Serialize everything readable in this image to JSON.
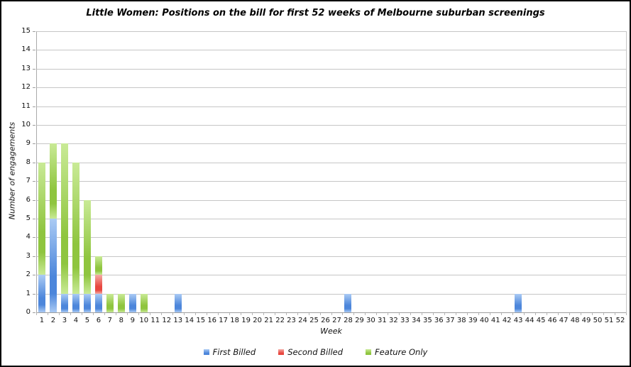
{
  "chart_data": {
    "type": "bar",
    "stacked": true,
    "title": "Little Women: Positions on the bill for first 52 weeks of Melbourne suburban screenings",
    "xlabel": "Week",
    "ylabel": "Number of engagements",
    "ylim": [
      0,
      15
    ],
    "y_ticks": [
      0,
      1,
      2,
      3,
      4,
      5,
      6,
      7,
      8,
      9,
      10,
      11,
      12,
      13,
      14,
      15
    ],
    "grid": true,
    "legend_position": "bottom",
    "categories": [
      1,
      2,
      3,
      4,
      5,
      6,
      7,
      8,
      9,
      10,
      11,
      12,
      13,
      14,
      15,
      16,
      17,
      18,
      19,
      20,
      21,
      22,
      23,
      24,
      25,
      26,
      27,
      28,
      29,
      30,
      31,
      32,
      33,
      34,
      35,
      36,
      37,
      38,
      39,
      40,
      41,
      42,
      43,
      44,
      45,
      46,
      47,
      48,
      49,
      50,
      51,
      52
    ],
    "series": [
      {
        "name": "First Billed",
        "color_main": "#4c86db",
        "color_light": "#abcbf4",
        "values": [
          2,
          5,
          1,
          1,
          1,
          1,
          0,
          0,
          1,
          0,
          0,
          0,
          1,
          0,
          0,
          0,
          0,
          0,
          0,
          0,
          0,
          0,
          0,
          0,
          0,
          0,
          0,
          1,
          0,
          0,
          0,
          0,
          0,
          0,
          0,
          0,
          0,
          0,
          0,
          0,
          0,
          0,
          1,
          0,
          0,
          0,
          0,
          0,
          0,
          0,
          0,
          0
        ]
      },
      {
        "name": "Second Billed",
        "color_main": "#e8473f",
        "color_light": "#f4aba5",
        "values": [
          0,
          0,
          0,
          0,
          0,
          1,
          0,
          0,
          0,
          0,
          0,
          0,
          0,
          0,
          0,
          0,
          0,
          0,
          0,
          0,
          0,
          0,
          0,
          0,
          0,
          0,
          0,
          0,
          0,
          0,
          0,
          0,
          0,
          0,
          0,
          0,
          0,
          0,
          0,
          0,
          0,
          0,
          0,
          0,
          0,
          0,
          0,
          0,
          0,
          0,
          0,
          0
        ]
      },
      {
        "name": "Feature Only",
        "color_main": "#8fc53f",
        "color_light": "#c9ea96",
        "values": [
          6,
          4,
          8,
          7,
          5,
          1,
          1,
          1,
          0,
          1,
          0,
          0,
          0,
          0,
          0,
          0,
          0,
          0,
          0,
          0,
          0,
          0,
          0,
          0,
          0,
          0,
          0,
          0,
          0,
          0,
          0,
          0,
          0,
          0,
          0,
          0,
          0,
          0,
          0,
          0,
          0,
          0,
          0,
          0,
          0,
          0,
          0,
          0,
          0,
          0,
          0,
          0
        ]
      }
    ]
  },
  "colors": {
    "gridline": "#c6c6c6",
    "axis": "#9e9e9e",
    "text": "#111111",
    "background": "#ffffff",
    "border": "#000000"
  }
}
